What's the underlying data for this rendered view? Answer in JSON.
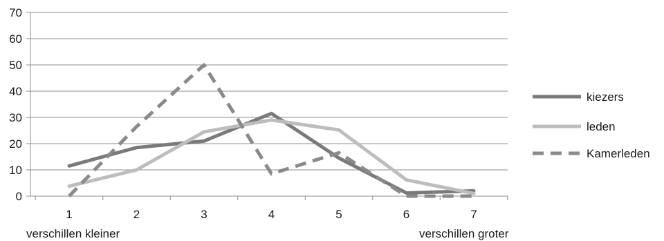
{
  "chart_data": {
    "type": "line",
    "categories": [
      "1",
      "2",
      "3",
      "4",
      "5",
      "6",
      "7"
    ],
    "ylim": [
      0,
      70
    ],
    "yticks": [
      0,
      10,
      20,
      30,
      40,
      50,
      60,
      70
    ],
    "grid": true,
    "legend_position": "right",
    "x_end_labels": {
      "left": "verschillen kleiner",
      "right": "verschillen groter"
    },
    "series": [
      {
        "name": "kiezers",
        "values": [
          11.5,
          18.5,
          21,
          31.5,
          14.5,
          1.2,
          2
        ],
        "color": "#7a7a7a",
        "style": "solid"
      },
      {
        "name": "leden",
        "values": [
          3.8,
          10,
          24.5,
          29,
          25.2,
          6.2,
          1
        ],
        "color": "#bdbdbd",
        "style": "solid"
      },
      {
        "name": "Kamerleden",
        "values": [
          0,
          26.5,
          50,
          8.5,
          16.5,
          0,
          0
        ],
        "color": "#8a8a8a",
        "style": "dashed"
      }
    ]
  }
}
